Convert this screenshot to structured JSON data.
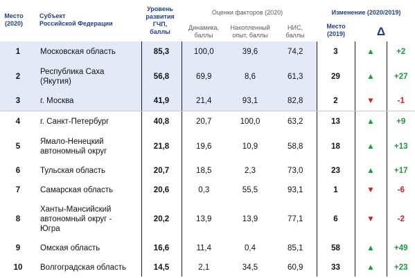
{
  "header": {
    "rank_label": "Место\n(2020)",
    "subject_label": "Субъект\nРоссийской Федерации",
    "score_label": "Уровень\nразвития\nГЧП,\nбаллы",
    "factors_label": "Оценки факторов (2020)",
    "dynamics_label": "Динамика,\nбаллы",
    "experience_label": "Накопленный\nопыт, баллы",
    "nis_label": "НИС,\nбаллы",
    "change_label": "Изменение (2020/2019)",
    "place2019_label": "Место\n(2019)",
    "delta_symbol": "Δ"
  },
  "colors": {
    "header_blue": "#1f3f8a",
    "highlight": "#e3e9f6",
    "up_green": "#1a9a3a",
    "down_red": "#d61b1b"
  },
  "rows": [
    {
      "rank": "1",
      "subject": "Московская область",
      "score": "85,3",
      "dynamics": "100,0",
      "experience": "39,6",
      "nis": "74,2",
      "place2019": "3",
      "arrow": "up",
      "delta": "+2"
    },
    {
      "rank": "2",
      "subject": "Республика Саха\n(Якутия)",
      "score": "56,8",
      "dynamics": "69,9",
      "experience": "8,6",
      "nis": "61,3",
      "place2019": "29",
      "arrow": "up",
      "delta": "+27"
    },
    {
      "rank": "3",
      "subject": "г. Москва",
      "score": "41,9",
      "dynamics": "21,4",
      "experience": "93,1",
      "nis": "82,8",
      "place2019": "2",
      "arrow": "down",
      "delta": "-1"
    },
    {
      "rank": "4",
      "subject": "г. Санкт-Петербург",
      "score": "40,8",
      "dynamics": "20,7",
      "experience": "100,0",
      "nis": "63,2",
      "place2019": "13",
      "arrow": "up",
      "delta": "+9"
    },
    {
      "rank": "5",
      "subject": "Ямало-Ненецкий\nавтономный округ",
      "score": "21,8",
      "dynamics": "19,6",
      "experience": "10,9",
      "nis": "58,8",
      "place2019": "18",
      "arrow": "up",
      "delta": "+13"
    },
    {
      "rank": "6",
      "subject": "Тульская область",
      "score": "20,7",
      "dynamics": "18,5",
      "experience": "2,3",
      "nis": "73,0",
      "place2019": "23",
      "arrow": "up",
      "delta": "+17"
    },
    {
      "rank": "7",
      "subject": "Самарская область",
      "score": "20,6",
      "dynamics": "0,3",
      "experience": "55,5",
      "nis": "93,1",
      "place2019": "1",
      "arrow": "down",
      "delta": "-6"
    },
    {
      "rank": "8",
      "subject": "Ханты-Мансийский\nавтономный округ -\nЮгра",
      "score": "20,2",
      "dynamics": "13,9",
      "experience": "13,9",
      "nis": "77,1",
      "place2019": "6",
      "arrow": "down",
      "delta": "-2"
    },
    {
      "rank": "9",
      "subject": "Омская область",
      "score": "16,6",
      "dynamics": "11,4",
      "experience": "0,4",
      "nis": "85,1",
      "place2019": "58",
      "arrow": "up",
      "delta": "+49"
    },
    {
      "rank": "10",
      "subject": "Волгоградская область",
      "score": "14,5",
      "dynamics": "2,1",
      "experience": "34,5",
      "nis": "60,9",
      "place2019": "33",
      "arrow": "up",
      "delta": "+23"
    }
  ]
}
